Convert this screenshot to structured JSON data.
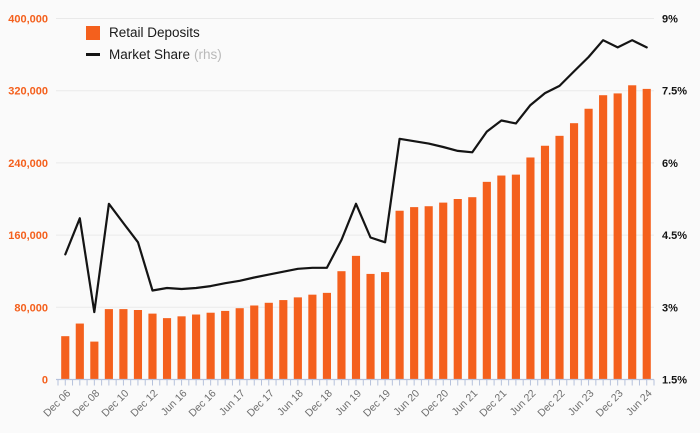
{
  "legend": {
    "series1_label": "Retail Deposits",
    "series2_label": "Market Share",
    "series2_suffix": "(rhs)"
  },
  "colors": {
    "background": "#fafafa",
    "bar": "#f4601d",
    "line": "#141414",
    "grid": "#e9e9e9",
    "axis": "#b6c2dc",
    "x_label": "#6e6e6e",
    "left_axis_label": "#f4601d",
    "right_axis_label": "#141414"
  },
  "chart_data": {
    "type": "combo_bar_line",
    "grid": "horizontal",
    "legend_position": "top-left",
    "categories": [
      "Dec 06",
      "",
      "Dec 08",
      "",
      "Dec 10",
      "",
      "Dec 12",
      "",
      "Jun 16",
      "",
      "Dec 16",
      "",
      "Jun 17",
      "",
      "Dec 17",
      "",
      "Jun 18",
      "",
      "Dec 18",
      "",
      "Jun 19",
      "",
      "Dec 19",
      "",
      "Jun 20",
      "",
      "Dec 20",
      "",
      "Jun 21",
      "",
      "Dec 21",
      "",
      "Jun 22",
      "",
      "Dec 22",
      "",
      "Jun 23",
      "",
      "Dec 23",
      "",
      "Jun 24"
    ],
    "visible_x_tick_labels": [
      "Dec 06",
      "Dec 08",
      "Dec 10",
      "Dec 12",
      "Jun 16",
      "Dec 16",
      "Jun 17",
      "Dec 17",
      "Jun 18",
      "Dec 18",
      "Jun 19",
      "Dec 19",
      "Jun 20",
      "Dec 20",
      "Jun 21",
      "Dec 21",
      "Jun 22",
      "Dec 22",
      "Jun 23",
      "Dec 23",
      "Jun 24"
    ],
    "series": [
      {
        "name": "Retail Deposits",
        "type": "bar",
        "axis": "left",
        "values": [
          48000,
          62000,
          42000,
          78000,
          78000,
          77000,
          73000,
          68000,
          70000,
          72000,
          74000,
          76000,
          79000,
          82000,
          85000,
          88000,
          91000,
          94000,
          96000,
          120000,
          137000,
          117000,
          119000,
          187000,
          191000,
          192000,
          196000,
          200000,
          202000,
          219000,
          226000,
          227000,
          246000,
          259000,
          270000,
          284000,
          300000,
          315000,
          317000,
          326000,
          322000
        ]
      },
      {
        "name": "Market Share (rhs)",
        "type": "line",
        "axis": "right",
        "values": [
          4.1,
          4.85,
          2.9,
          5.15,
          4.75,
          4.35,
          3.35,
          3.4,
          3.38,
          3.4,
          3.44,
          3.5,
          3.55,
          3.62,
          3.68,
          3.74,
          3.8,
          3.82,
          3.82,
          4.4,
          5.15,
          4.45,
          4.35,
          6.5,
          6.45,
          6.4,
          6.33,
          6.25,
          6.22,
          6.65,
          6.88,
          6.82,
          7.2,
          7.45,
          7.6,
          7.9,
          8.2,
          8.55,
          8.4,
          8.55,
          8.4
        ]
      }
    ],
    "left_axis": {
      "tick_labels": [
        "0",
        "80,000",
        "160,000",
        "240,000",
        "320,000",
        "400,000"
      ],
      "range": [
        0,
        400000
      ]
    },
    "right_axis": {
      "tick_labels": [
        "1.5%",
        "3%",
        "4.5%",
        "6%",
        "7.5%",
        "9%"
      ],
      "range": [
        1.5,
        9
      ]
    }
  }
}
